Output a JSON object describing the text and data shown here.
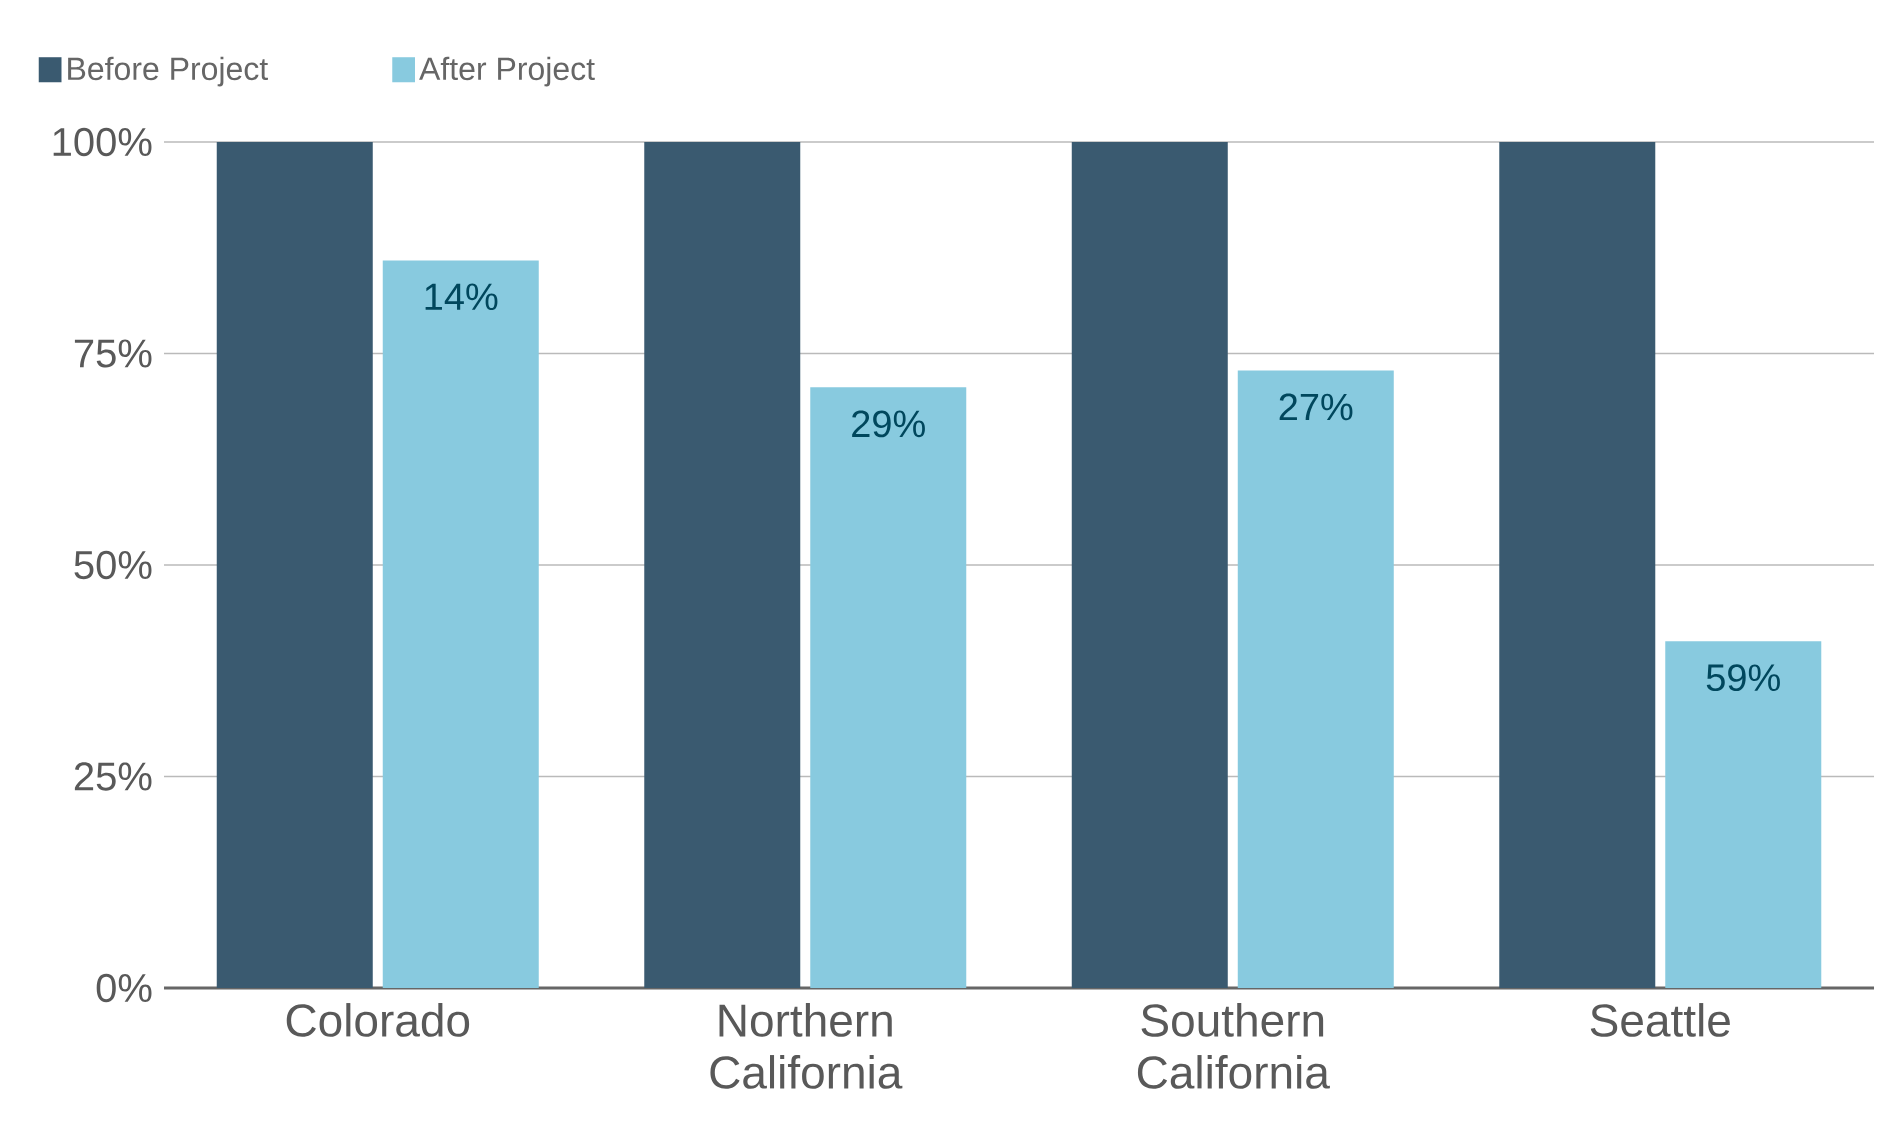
{
  "chart_data": {
    "type": "bar",
    "categories": [
      "Colorado",
      "Northern California",
      "Southern California",
      "Seattle"
    ],
    "series": [
      {
        "name": "Before Project",
        "color": "#3a5a70",
        "values": [
          100,
          100,
          100,
          100
        ]
      },
      {
        "name": "After Project",
        "color": "#88cadf",
        "values": [
          86,
          71,
          73,
          41
        ]
      }
    ],
    "annotations": [
      {
        "text": "14%",
        "x": "Colorado",
        "y": 86
      },
      {
        "text": "29%",
        "x": "Northern California",
        "y": 71
      },
      {
        "text": "27%",
        "x": "Southern California",
        "y": 73
      },
      {
        "text": "59%",
        "x": "Seattle",
        "y": 41
      }
    ],
    "ylim": [
      0,
      100
    ],
    "yticks": [
      {
        "value": 0,
        "label": "0%"
      },
      {
        "value": 25,
        "label": "25%"
      },
      {
        "value": 50,
        "label": "50%"
      },
      {
        "value": 75,
        "label": "75%"
      },
      {
        "value": 100,
        "label": "100%"
      }
    ],
    "grid": "y",
    "legend": "top left"
  }
}
